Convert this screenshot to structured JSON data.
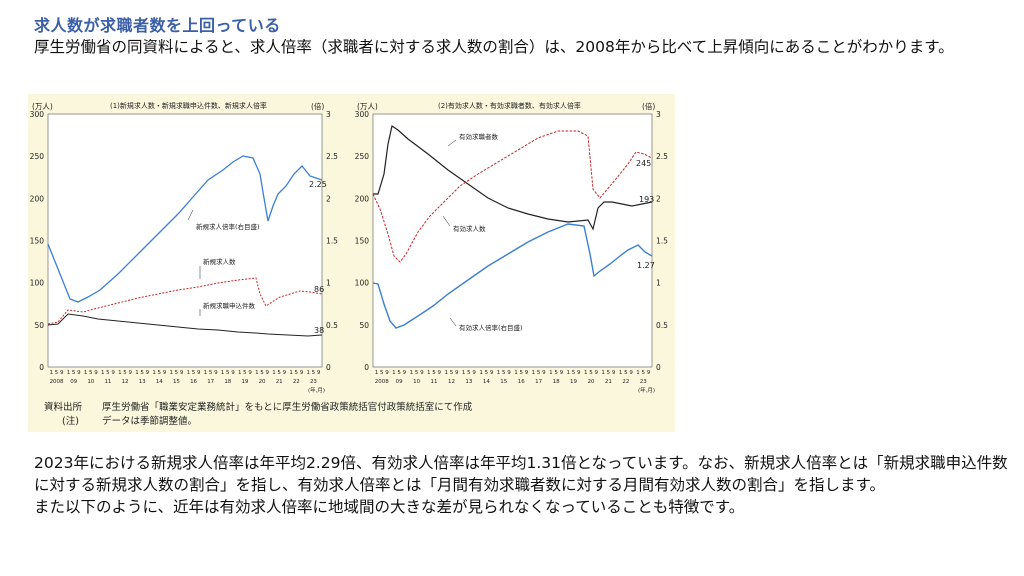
{
  "slide": {
    "title": "求人数が求職者数を上回っている",
    "intro": "厚生労働省の同資料によると、求人倍率（求職者に対する求人数の割合）は、2008年から比べて上昇傾向にあることがわかります。",
    "body_line1": "2023年における新規求人倍率は年平均2.29倍、有効求人倍率は年平均1.31倍となっています。なお、新規求人倍率とは「新規求職申込件数に対する新規求人数の割合」を指し、有効求人倍率とは「月間有効求職者数に対する月間有効求人数の割合」を指します。",
    "body_line2": "また以下のように、近年は有効求人倍率に地域間の大きな差が見られなくなっていることも特徴です。"
  },
  "figure": {
    "left_panel": {
      "title": "(1)新規求人数・新規求職申込件数、新規求人倍率",
      "left_unit": "(万人)",
      "right_unit": "(倍)",
      "series_labels": {
        "ratio": "新規求人倍率(右目盛)",
        "openings": "新規求人数",
        "applicants": "新規求職申込件数"
      },
      "end_values": {
        "ratio": "2.25",
        "openings": "86",
        "applicants": "38"
      }
    },
    "right_panel": {
      "title": "(2)有効求人数・有効求職者数、有効求人倍率",
      "left_unit": "(万人)",
      "right_unit": "(倍)",
      "series_labels": {
        "seekers": "有効求職者数",
        "openings": "有効求人数",
        "ratio": "有効求人倍率(右目盛)"
      },
      "end_values": {
        "openings": "245",
        "seekers": "193",
        "ratio": "1.27"
      }
    },
    "left_axis_ticks": [
      "300",
      "250",
      "200",
      "150",
      "100",
      "50",
      "0"
    ],
    "right_axis_ticks": [
      "3",
      "2.5",
      "2",
      "1.5",
      "1",
      "0.5",
      "0"
    ],
    "year_labels": [
      "2008",
      "09",
      "10",
      "11",
      "12",
      "13",
      "14",
      "15",
      "16",
      "17",
      "18",
      "19",
      "20",
      "21",
      "22",
      "23"
    ],
    "x_axis_unit": "(年,月)",
    "month_marks": "1 5 9",
    "source_label": "資料出所",
    "source_text": "厚生労働省「職業安定業務統計」をもとに厚生労働省政策統括官付政策統括室にて作成",
    "note_label": "(注)",
    "note_text": "データは季節調整値。",
    "colors": {
      "blue": "#3b7fd4",
      "red": "#cc2222",
      "black": "#222222",
      "bg": "#fbf7dd"
    }
  }
}
